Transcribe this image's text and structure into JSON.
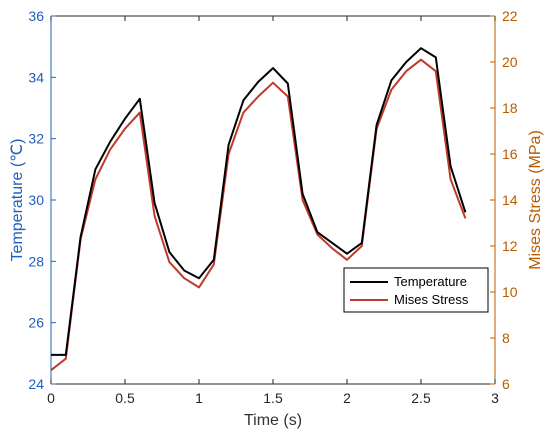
{
  "colors": {
    "left_axis": "#1f5fbf",
    "right_axis": "#b85c00",
    "temperature_line": "#000000",
    "stress_line": "#c0392b"
  },
  "chart_data": {
    "type": "line",
    "title": "",
    "xlabel": "Time (s)",
    "ylabel_left": "Temperature (℃)",
    "ylabel_right": "Mises Stress (MPa)",
    "xlim": [
      0,
      3
    ],
    "ylim_left": [
      24,
      36
    ],
    "ylim_right": [
      6,
      22
    ],
    "x_ticks": [
      "0",
      "0.5",
      "1",
      "1.5",
      "2",
      "2.5",
      "3"
    ],
    "y_left_ticks": [
      "24",
      "26",
      "28",
      "30",
      "32",
      "34",
      "36"
    ],
    "y_right_ticks": [
      "6",
      "8",
      "10",
      "12",
      "14",
      "16",
      "18",
      "20",
      "22"
    ],
    "grid": false,
    "legend_position": "bottom-right",
    "series": [
      {
        "name": "Temperature",
        "axis": "left",
        "x": [
          0,
          0.1,
          0.2,
          0.3,
          0.4,
          0.5,
          0.6,
          0.7,
          0.8,
          0.9,
          1.0,
          1.1,
          1.2,
          1.3,
          1.4,
          1.5,
          1.6,
          1.7,
          1.8,
          1.9,
          2.0,
          2.1,
          2.2,
          2.3,
          2.4,
          2.5,
          2.6,
          2.7,
          2.8
        ],
        "values": [
          24.95,
          24.95,
          28.8,
          31.0,
          31.9,
          32.65,
          33.3,
          29.9,
          28.3,
          27.7,
          27.45,
          28.05,
          31.8,
          33.25,
          33.85,
          34.3,
          33.8,
          30.2,
          28.95,
          28.6,
          28.25,
          28.6,
          32.45,
          33.9,
          34.5,
          34.95,
          34.65,
          31.1,
          29.6
        ]
      },
      {
        "name": "Mises Stress",
        "axis": "right",
        "x": [
          0,
          0.1,
          0.2,
          0.3,
          0.4,
          0.5,
          0.6,
          0.7,
          0.8,
          0.9,
          1.0,
          1.1,
          1.2,
          1.3,
          1.4,
          1.5,
          1.6,
          1.7,
          1.8,
          1.9,
          2.0,
          2.1,
          2.2,
          2.3,
          2.4,
          2.5,
          2.6,
          2.7,
          2.8
        ],
        "values": [
          6.6,
          7.1,
          12.3,
          14.9,
          16.2,
          17.1,
          17.8,
          13.3,
          11.3,
          10.6,
          10.2,
          11.2,
          16.0,
          17.8,
          18.5,
          19.1,
          18.5,
          14.0,
          12.5,
          11.9,
          11.4,
          12.0,
          17.1,
          18.8,
          19.6,
          20.1,
          19.6,
          14.9,
          13.2
        ]
      }
    ]
  }
}
